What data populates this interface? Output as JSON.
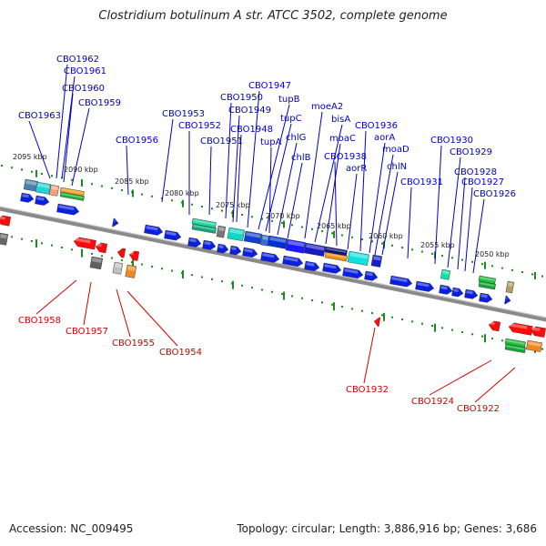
{
  "header": {
    "title": "Clostridium botulinum A str. ATCC 3502, complete genome"
  },
  "footer": {
    "accession": "Accession: NC_009495",
    "topology": "Topology: circular; Length: 3,886,916 bp; Genes: 3,686"
  },
  "colors": {
    "forward_label": "#0000c8",
    "reverse_label": "#d20000",
    "backbone": "#8a8a8a",
    "tick": "#1a8c1a"
  },
  "scale_labels": [
    "2095 kbp",
    "2090 kbp",
    "2085 kbp",
    "2080 kbp",
    "2075 kbp",
    "2070 kbp",
    "2065 kbp",
    "2060 kbp",
    "2055 kbp",
    "2050 kbp"
  ],
  "forward_gene_labels": [
    "CBO1963",
    "CBO1962",
    "CBO1961",
    "CBO1960",
    "CBO1959",
    "CBO1956",
    "CBO1953",
    "CBO1952",
    "CBO1951",
    "CBO1950",
    "CBO1949",
    "CBO1948",
    "CBO1947",
    "tupB",
    "tupC",
    "tupA",
    "chlG",
    "chlB",
    "moeA2",
    "bisA",
    "moaC",
    "CBO1938",
    "aorR",
    "CBO1936",
    "aorA",
    "moaD",
    "chlN",
    "CBO1931",
    "CBO1930",
    "CBO1929",
    "CBO1928",
    "CBO1927",
    "CBO1926"
  ],
  "reverse_gene_labels": [
    "CBO1958",
    "CBO1957",
    "CBO1955",
    "CBO1954",
    "CBO1932",
    "CBO1924",
    "CBO1922"
  ],
  "legend_note": ""
}
